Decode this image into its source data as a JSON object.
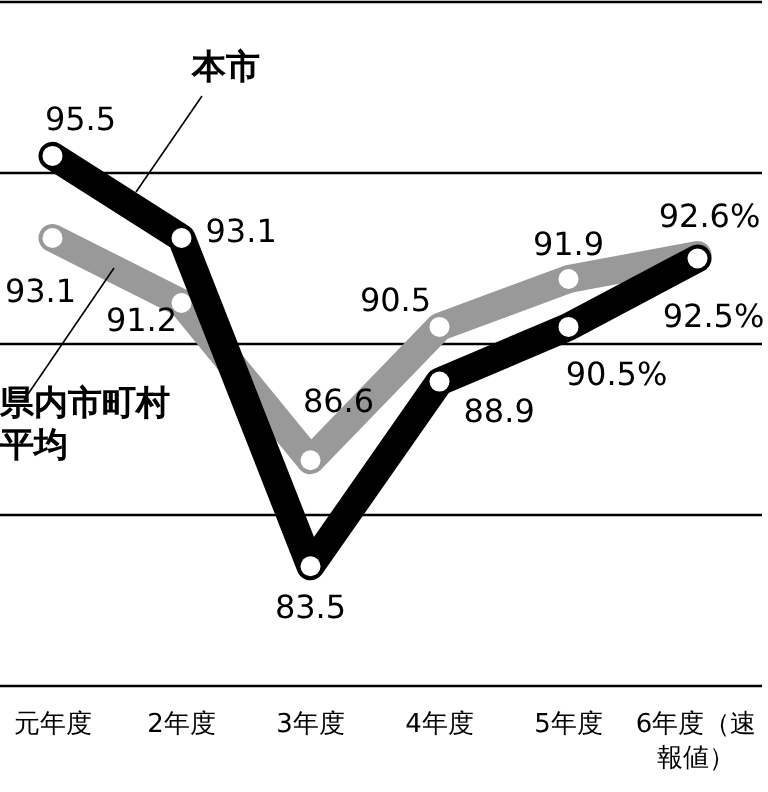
{
  "chart_data": {
    "type": "line",
    "categories": [
      "元年度",
      "2年度",
      "3年度",
      "4年度",
      "5年度",
      "6年度（速報値）"
    ],
    "series": [
      {
        "name": "県内市町村平均",
        "color": "#999999",
        "values": [
          93.1,
          91.2,
          86.6,
          90.5,
          91.9,
          92.6
        ],
        "value_labels": [
          "93.1",
          "91.2",
          "86.6",
          "90.5",
          "91.9",
          "92.6%"
        ]
      },
      {
        "name": "本市",
        "color": "#000000",
        "values": [
          95.5,
          93.1,
          83.5,
          88.9,
          90.5,
          92.5
        ],
        "value_labels": [
          "95.5",
          "93.1",
          "83.5",
          "88.9",
          "90.5%",
          "92.5%"
        ]
      }
    ],
    "ylim": [
      80,
      100
    ],
    "yticks": [
      {
        "value": 80,
        "label": null
      },
      {
        "value": 85,
        "label": null
      },
      {
        "value": 90,
        "label": null
      },
      {
        "value": 95,
        "label": null
      },
      {
        "value": 100,
        "label": null
      }
    ],
    "grid": "y",
    "tick_labels": "x",
    "marker": "circle",
    "line_style": "solid"
  }
}
